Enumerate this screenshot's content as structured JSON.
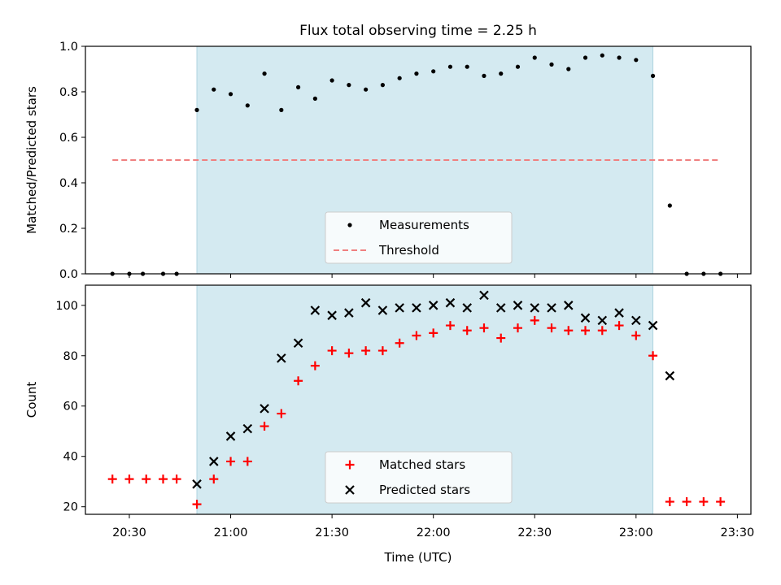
{
  "chart_data": [
    {
      "type": "scatter",
      "title": "Flux total observing time = 2.25 h",
      "ylabel": "Matched/Predicted stars",
      "xlabel": "",
      "ylim": [
        0,
        1.0
      ],
      "yticks": [
        "0.0",
        "0.2",
        "0.4",
        "0.6",
        "0.8",
        "1.0"
      ],
      "xlim": [
        "20:17",
        "23:34"
      ],
      "grid": false,
      "shaded_span": [
        "20:50",
        "23:05"
      ],
      "shade_color": "#d4eaf1",
      "threshold": {
        "value": 0.5,
        "from": "20:25",
        "to": "23:25",
        "color": "#f08080",
        "style": "dashed"
      },
      "legend": {
        "placement": "lower center",
        "entries": [
          "Measurements",
          "Threshold"
        ]
      },
      "series": [
        {
          "name": "Measurements",
          "marker": "dot",
          "color": "#000000",
          "points": [
            [
              "20:25",
              0.0
            ],
            [
              "20:30",
              0.0
            ],
            [
              "20:34",
              0.0
            ],
            [
              "20:40",
              0.0
            ],
            [
              "20:44",
              0.0
            ],
            [
              "20:50",
              0.72
            ],
            [
              "20:55",
              0.81
            ],
            [
              "21:00",
              0.79
            ],
            [
              "21:05",
              0.74
            ],
            [
              "21:10",
              0.88
            ],
            [
              "21:15",
              0.72
            ],
            [
              "21:20",
              0.82
            ],
            [
              "21:25",
              0.77
            ],
            [
              "21:30",
              0.85
            ],
            [
              "21:35",
              0.83
            ],
            [
              "21:40",
              0.81
            ],
            [
              "21:45",
              0.83
            ],
            [
              "21:50",
              0.86
            ],
            [
              "21:55",
              0.88
            ],
            [
              "22:00",
              0.89
            ],
            [
              "22:05",
              0.91
            ],
            [
              "22:10",
              0.91
            ],
            [
              "22:15",
              0.87
            ],
            [
              "22:20",
              0.88
            ],
            [
              "22:25",
              0.91
            ],
            [
              "22:30",
              0.95
            ],
            [
              "22:35",
              0.92
            ],
            [
              "22:40",
              0.9
            ],
            [
              "22:45",
              0.95
            ],
            [
              "22:50",
              0.96
            ],
            [
              "22:55",
              0.95
            ],
            [
              "23:00",
              0.94
            ],
            [
              "23:05",
              0.87
            ],
            [
              "23:10",
              0.3
            ],
            [
              "23:15",
              0.0
            ],
            [
              "23:20",
              0.0
            ],
            [
              "23:25",
              0.0
            ]
          ]
        }
      ]
    },
    {
      "type": "scatter",
      "title": "",
      "ylabel": "Count",
      "xlabel": "Time (UTC)",
      "ylim": [
        17,
        108
      ],
      "yticks": [
        "20",
        "40",
        "60",
        "80",
        "100"
      ],
      "xlim": [
        "20:17",
        "23:34"
      ],
      "xticks": [
        "20:30",
        "21:00",
        "21:30",
        "22:00",
        "22:30",
        "23:00",
        "23:30"
      ],
      "grid": false,
      "shaded_span": [
        "20:50",
        "23:05"
      ],
      "shade_color": "#d4eaf1",
      "legend": {
        "placement": "lower center",
        "entries": [
          "Matched stars",
          "Predicted stars"
        ]
      },
      "series": [
        {
          "name": "Matched stars",
          "marker": "plus",
          "color": "#ff0000",
          "points": [
            [
              "20:25",
              31
            ],
            [
              "20:30",
              31
            ],
            [
              "20:35",
              31
            ],
            [
              "20:40",
              31
            ],
            [
              "20:44",
              31
            ],
            [
              "20:50",
              21
            ],
            [
              "20:55",
              31
            ],
            [
              "21:00",
              38
            ],
            [
              "21:05",
              38
            ],
            [
              "21:10",
              52
            ],
            [
              "21:15",
              57
            ],
            [
              "21:20",
              70
            ],
            [
              "21:25",
              76
            ],
            [
              "21:30",
              82
            ],
            [
              "21:35",
              81
            ],
            [
              "21:40",
              82
            ],
            [
              "21:45",
              82
            ],
            [
              "21:50",
              85
            ],
            [
              "21:55",
              88
            ],
            [
              "22:00",
              89
            ],
            [
              "22:05",
              92
            ],
            [
              "22:10",
              90
            ],
            [
              "22:15",
              91
            ],
            [
              "22:20",
              87
            ],
            [
              "22:25",
              91
            ],
            [
              "22:30",
              94
            ],
            [
              "22:35",
              91
            ],
            [
              "22:40",
              90
            ],
            [
              "22:45",
              90
            ],
            [
              "22:50",
              90
            ],
            [
              "22:55",
              92
            ],
            [
              "23:00",
              88
            ],
            [
              "23:05",
              80
            ],
            [
              "23:10",
              22
            ],
            [
              "23:15",
              22
            ],
            [
              "23:20",
              22
            ],
            [
              "23:25",
              22
            ]
          ]
        },
        {
          "name": "Predicted stars",
          "marker": "x",
          "color": "#000000",
          "points": [
            [
              "20:50",
              29
            ],
            [
              "20:55",
              38
            ],
            [
              "21:00",
              48
            ],
            [
              "21:05",
              51
            ],
            [
              "21:10",
              59
            ],
            [
              "21:15",
              79
            ],
            [
              "21:20",
              85
            ],
            [
              "21:25",
              98
            ],
            [
              "21:30",
              96
            ],
            [
              "21:35",
              97
            ],
            [
              "21:40",
              101
            ],
            [
              "21:45",
              98
            ],
            [
              "21:50",
              99
            ],
            [
              "21:55",
              99
            ],
            [
              "22:00",
              100
            ],
            [
              "22:05",
              101
            ],
            [
              "22:10",
              99
            ],
            [
              "22:15",
              104
            ],
            [
              "22:20",
              99
            ],
            [
              "22:25",
              100
            ],
            [
              "22:30",
              99
            ],
            [
              "22:35",
              99
            ],
            [
              "22:40",
              100
            ],
            [
              "22:45",
              95
            ],
            [
              "22:50",
              94
            ],
            [
              "22:55",
              97
            ],
            [
              "23:00",
              94
            ],
            [
              "23:05",
              92
            ],
            [
              "23:10",
              72
            ]
          ]
        }
      ]
    }
  ]
}
